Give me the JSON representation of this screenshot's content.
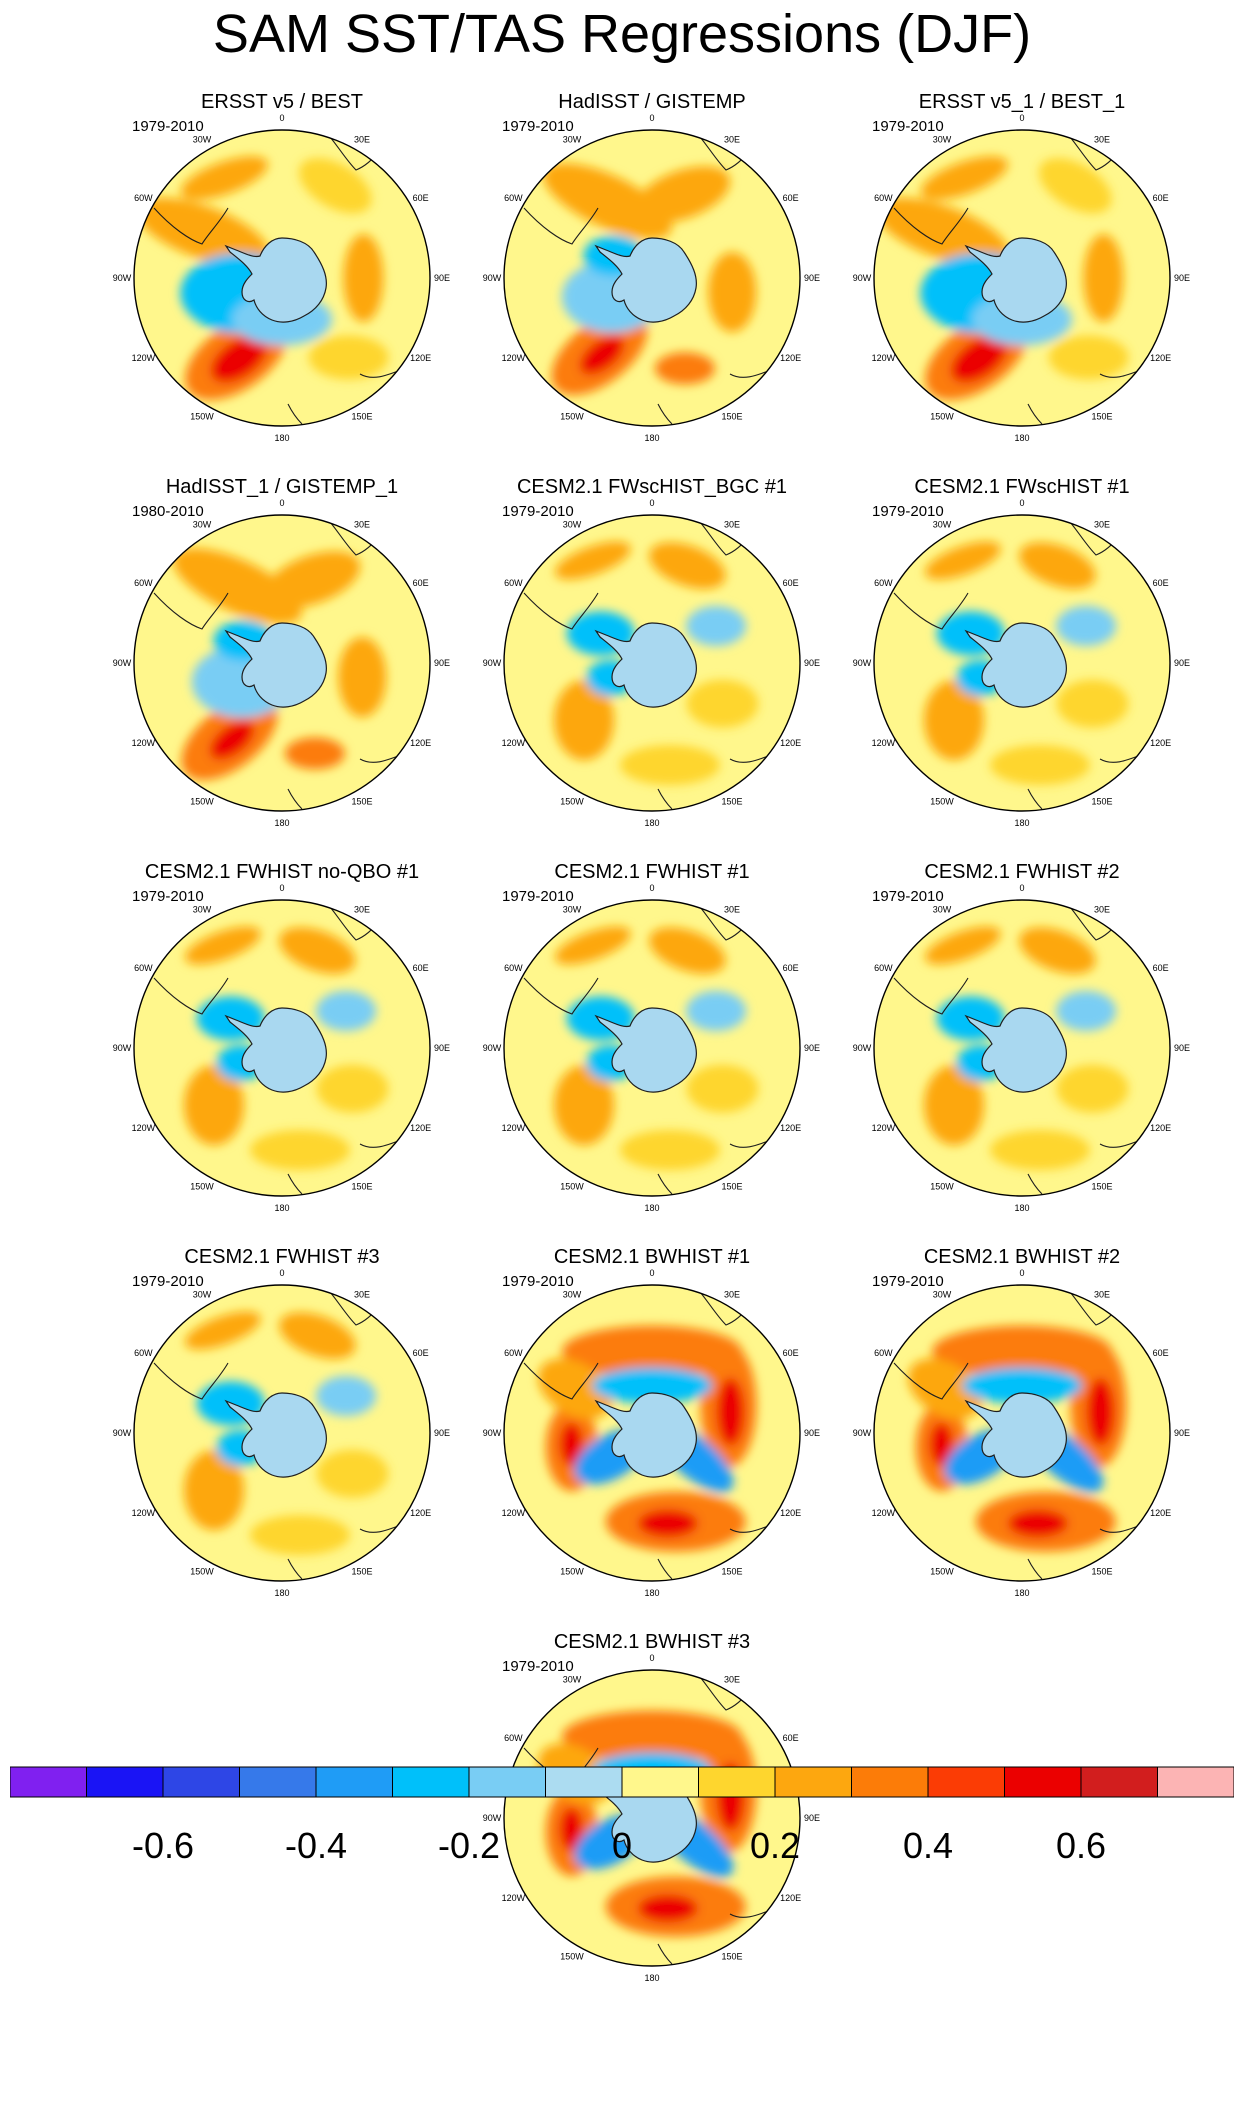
{
  "title": "SAM SST/TAS Regressions (DJF)",
  "longitude_labels": [
    "0",
    "30E",
    "60E",
    "90E",
    "120E",
    "150E",
    "180",
    "150W",
    "120W",
    "90W",
    "60W",
    "30W"
  ],
  "panels": [
    {
      "title": "ERSST v5 / BEST",
      "years": "1979-2010",
      "pattern": "obs"
    },
    {
      "title": "HadISST / GISTEMP",
      "years": "1979-2010",
      "pattern": "obs2"
    },
    {
      "title": "ERSST v5_1 / BEST_1",
      "years": "1979-2010",
      "pattern": "obs"
    },
    {
      "title": "HadISST_1 / GISTEMP_1",
      "years": "1980-2010",
      "pattern": "obs2"
    },
    {
      "title": "CESM2.1 FWscHIST_BGC #1",
      "years": "1979-2010",
      "pattern": "weak"
    },
    {
      "title": "CESM2.1 FWscHIST #1",
      "years": "1979-2010",
      "pattern": "weak"
    },
    {
      "title": "CESM2.1 FWHIST no-QBO #1",
      "years": "1979-2010",
      "pattern": "weak"
    },
    {
      "title": "CESM2.1 FWHIST #1",
      "years": "1979-2010",
      "pattern": "weak"
    },
    {
      "title": "CESM2.1 FWHIST #2",
      "years": "1979-2010",
      "pattern": "weak"
    },
    {
      "title": "CESM2.1 FWHIST #3",
      "years": "1979-2010",
      "pattern": "weak"
    },
    {
      "title": "CESM2.1 BWHIST #1",
      "years": "1979-2010",
      "pattern": "ring"
    },
    {
      "title": "CESM2.1 BWHIST #2",
      "years": "1979-2010",
      "pattern": "ring"
    },
    {
      "title": "CESM2.1 BWHIST #3",
      "years": "1979-2010",
      "pattern": "ring"
    }
  ],
  "colorbar": {
    "colors": [
      "#8020f0",
      "#1a14f5",
      "#2e46e6",
      "#3679ea",
      "#1f9cf6",
      "#00c0fa",
      "#79cdf4",
      "#acdcf1",
      "#fff78c",
      "#fed62e",
      "#fda70f",
      "#fc7c08",
      "#fb3c05",
      "#eb0000",
      "#d21e1e",
      "#fcb4b4"
    ],
    "labels": [
      "-0.6",
      "-0.4",
      "-0.2",
      "0",
      "0.2",
      "0.4",
      "0.6"
    ],
    "label_values": [
      -0.6,
      -0.4,
      -0.2,
      0,
      0.2,
      0.4,
      0.6
    ],
    "min": -0.8,
    "max": 0.8
  }
}
